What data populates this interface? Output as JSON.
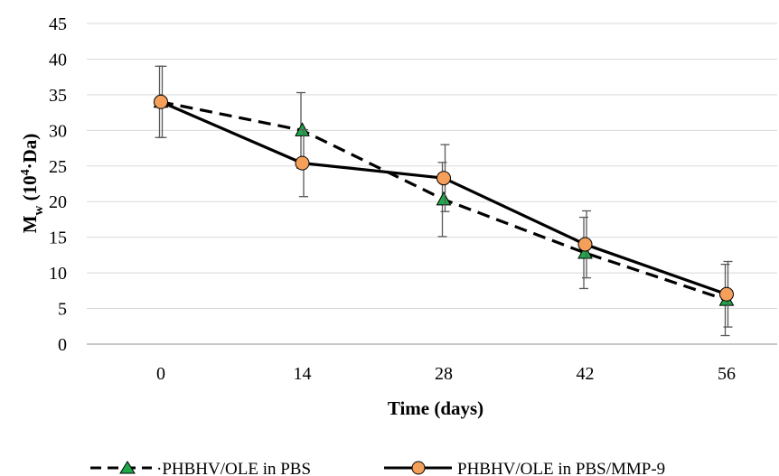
{
  "chart_data": {
    "type": "line",
    "xlabel": "Time (days)",
    "ylabel": {
      "main": "M",
      "sub": "w",
      "paren_open": " (10",
      "sup": "4",
      "paren_close": "·Da)"
    },
    "x": [
      0,
      14,
      28,
      42,
      56
    ],
    "x_tick_labels": [
      "0",
      "14",
      "28",
      "42",
      "56"
    ],
    "ylim": [
      0,
      45
    ],
    "y_ticks": [
      0,
      5,
      10,
      15,
      20,
      25,
      30,
      35,
      40,
      45
    ],
    "grid": "horizontal",
    "legend_position": "bottom",
    "series": [
      {
        "name": "·PHBHV/OLE in PBS",
        "line_style": "dashed",
        "marker": "triangle",
        "marker_color": "#1fa84a",
        "values": [
          34,
          30,
          20.3,
          12.8,
          6.2
        ],
        "errors": [
          5,
          5.3,
          5.2,
          5,
          5
        ]
      },
      {
        "name": "PHBHV/OLE in PBS/MMP-9",
        "line_style": "solid",
        "marker": "circle",
        "marker_color": "#f5a05a",
        "values": [
          34,
          25.4,
          23.3,
          14,
          7
        ],
        "errors": [
          5,
          4.7,
          4.7,
          4.7,
          4.6
        ]
      }
    ]
  }
}
